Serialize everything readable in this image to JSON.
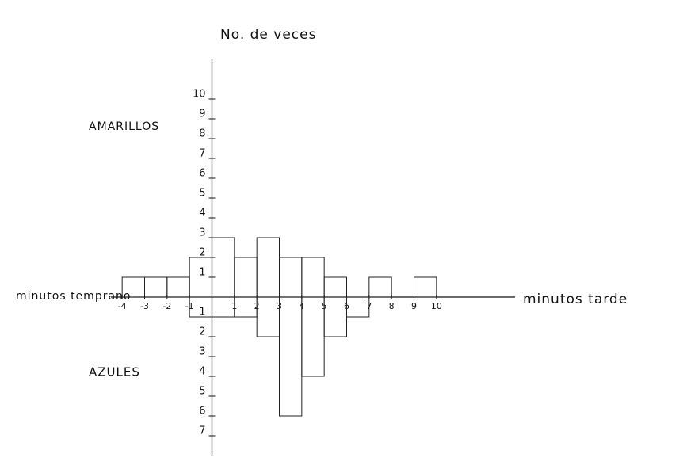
{
  "chart_data": {
    "type": "histogram",
    "title": "No. de veces",
    "x_label_right": "minutos tarde",
    "x_label_left": "minutos temprano",
    "upper_label": "AMARILLOS",
    "lower_label": "AZULES",
    "bins": [
      -4,
      -3,
      -2,
      -1,
      0,
      1,
      2,
      3,
      4,
      5,
      6,
      7,
      8,
      9,
      10
    ],
    "series": [
      {
        "name": "AMARILLOS",
        "color": "#222222",
        "values": [
          1,
          1,
          1,
          2,
          3,
          2,
          3,
          2,
          2,
          1,
          0,
          1,
          0,
          1
        ]
      },
      {
        "name": "AZULES",
        "color": "#222222",
        "values": [
          0,
          0,
          0,
          -1,
          -1,
          -1,
          -2,
          -6,
          -4,
          -2,
          -1,
          0,
          0,
          0
        ]
      }
    ],
    "xlim": [
      -4.5,
      13.5
    ],
    "ylim": [
      -8,
      12
    ],
    "xticks": [
      -4,
      -3,
      -2,
      -1,
      1,
      2,
      3,
      4,
      5,
      6,
      7,
      8,
      9,
      10
    ],
    "yticks": [
      {
        "value": -7,
        "label": "7"
      },
      {
        "value": -6,
        "label": "6"
      },
      {
        "value": -5,
        "label": "5"
      },
      {
        "value": -4,
        "label": "4"
      },
      {
        "value": -3,
        "label": "3"
      },
      {
        "value": -2,
        "label": "2"
      },
      {
        "value": -1,
        "label": "1"
      },
      1,
      2,
      3,
      4,
      5,
      6,
      7,
      8,
      9,
      10
    ]
  }
}
